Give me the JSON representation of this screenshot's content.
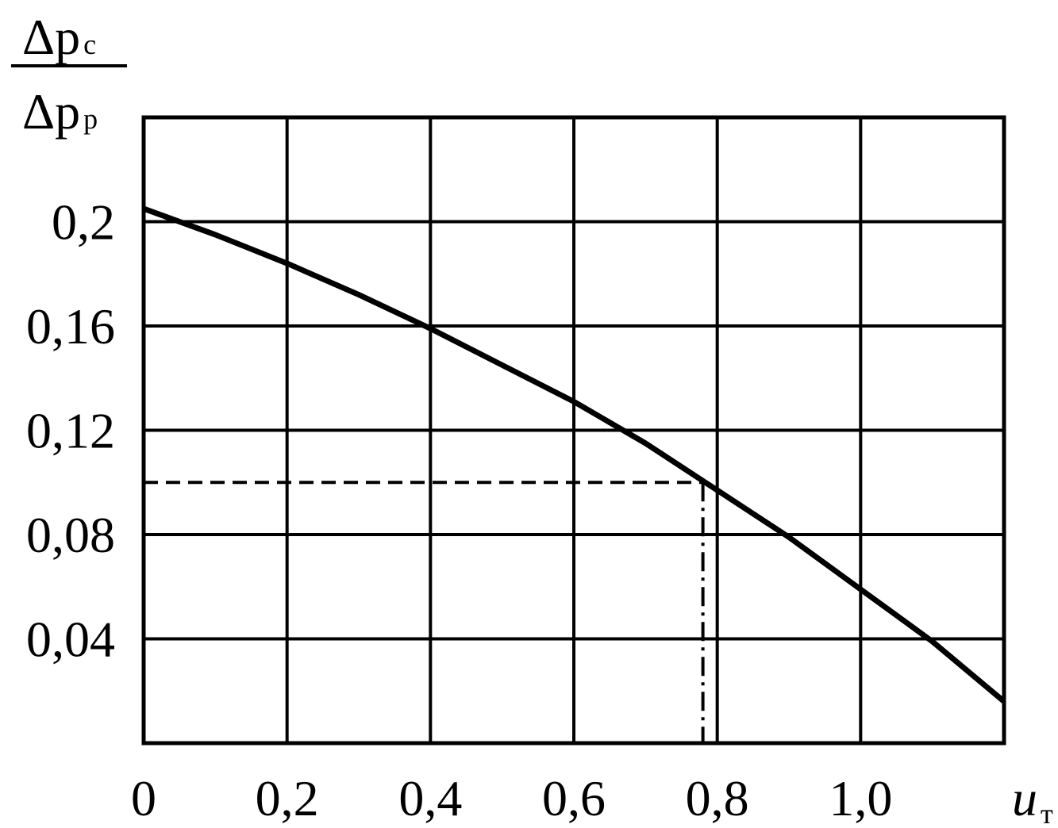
{
  "chart_data": {
    "type": "line",
    "ylabel": {
      "numerator": "Δp",
      "numerator_sub": "с",
      "denominator": "Δp",
      "denominator_sub": "р"
    },
    "xlabel": {
      "main": "u",
      "sub": "т"
    },
    "x": [
      0,
      0.1,
      0.2,
      0.3,
      0.4,
      0.5,
      0.6,
      0.7,
      0.8,
      0.9,
      1.0,
      1.1,
      1.2
    ],
    "values": [
      0.205,
      0.195,
      0.184,
      0.172,
      0.159,
      0.145,
      0.131,
      0.115,
      0.097,
      0.079,
      0.059,
      0.039,
      0.016
    ],
    "color": "#000000",
    "reference": {
      "x": 0.78,
      "y": 0.1
    },
    "xlim": [
      0,
      1.2
    ],
    "ylim": [
      0,
      0.24
    ],
    "xticks": [
      0,
      {
        "value": 0.2,
        "label": "0,2"
      },
      {
        "value": 0.4,
        "label": "0,4"
      },
      {
        "value": 0.6,
        "label": "0,6"
      },
      {
        "value": 0.8,
        "label": "0,8"
      },
      {
        "value": 1.0,
        "label": "1,0"
      }
    ],
    "yticks": [
      {
        "value": 0.04,
        "label": "0,04"
      },
      {
        "value": 0.08,
        "label": "0,08"
      },
      {
        "value": 0.12,
        "label": "0,12"
      },
      {
        "value": 0.16,
        "label": "0,16"
      },
      {
        "value": 0.2,
        "label": "0,2"
      }
    ],
    "grid": true
  }
}
